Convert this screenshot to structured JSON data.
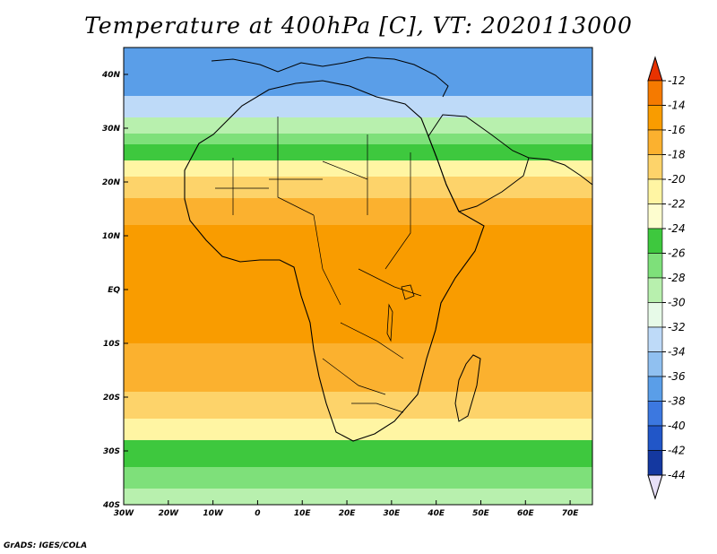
{
  "title": "Temperature at 400hPa [C], VT: 2020113000",
  "credit": "GrADS: IGES/COLA",
  "map": {
    "projection": "lat-lon",
    "lon_range": [
      -30,
      75
    ],
    "lat_range": [
      -40,
      45
    ],
    "lon_ticks": [
      {
        "value": -30,
        "label": "30W"
      },
      {
        "value": -20,
        "label": "20W"
      },
      {
        "value": -10,
        "label": "10W"
      },
      {
        "value": 0,
        "label": "0"
      },
      {
        "value": 10,
        "label": "10E"
      },
      {
        "value": 20,
        "label": "20E"
      },
      {
        "value": 30,
        "label": "30E"
      },
      {
        "value": 40,
        "label": "40E"
      },
      {
        "value": 50,
        "label": "50E"
      },
      {
        "value": 60,
        "label": "60E"
      },
      {
        "value": 70,
        "label": "70E"
      }
    ],
    "lat_ticks": [
      {
        "value": 40,
        "label": "40N"
      },
      {
        "value": 30,
        "label": "30N"
      },
      {
        "value": 20,
        "label": "20N"
      },
      {
        "value": 10,
        "label": "10N"
      },
      {
        "value": 0,
        "label": "EQ"
      },
      {
        "value": -10,
        "label": "10S"
      },
      {
        "value": -20,
        "label": "20S"
      },
      {
        "value": -30,
        "label": "30S"
      },
      {
        "value": -40,
        "label": "40S"
      }
    ],
    "temperature_bands_by_lat": [
      {
        "lat_top": 45,
        "lat_bottom": 36,
        "value": -37
      },
      {
        "lat_top": 36,
        "lat_bottom": 32,
        "value": -33
      },
      {
        "lat_top": 32,
        "lat_bottom": 29,
        "value": -29
      },
      {
        "lat_top": 29,
        "lat_bottom": 27,
        "value": -27
      },
      {
        "lat_top": 27,
        "lat_bottom": 24,
        "value": -25
      },
      {
        "lat_top": 24,
        "lat_bottom": 21,
        "value": -21
      },
      {
        "lat_top": 21,
        "lat_bottom": 17,
        "value": -19
      },
      {
        "lat_top": 17,
        "lat_bottom": 12,
        "value": -17
      },
      {
        "lat_top": 12,
        "lat_bottom": -10,
        "value": -15
      },
      {
        "lat_top": -10,
        "lat_bottom": -19,
        "value": -17
      },
      {
        "lat_top": -19,
        "lat_bottom": -24,
        "value": -19
      },
      {
        "lat_top": -24,
        "lat_bottom": -28,
        "value": -21
      },
      {
        "lat_top": -28,
        "lat_bottom": -33,
        "value": -25
      },
      {
        "lat_top": -33,
        "lat_bottom": -37,
        "value": -27
      },
      {
        "lat_top": -37,
        "lat_bottom": -40,
        "value": -29
      }
    ]
  },
  "colorbar": {
    "levels": [
      "-12",
      "-14",
      "-16",
      "-18",
      "-20",
      "-22",
      "-24",
      "-26",
      "-28",
      "-30",
      "-32",
      "-34",
      "-36",
      "-38",
      "-40",
      "-42",
      "-44"
    ],
    "colors": [
      "#f03c00",
      "#f57a00",
      "#f99c00",
      "#fbb12f",
      "#fdd36a",
      "#fff5a3",
      "#fdfdcf",
      "#3ec83e",
      "#7ee07a",
      "#b8f0ae",
      "#e7fae8",
      "#bedaf8",
      "#90c0f0",
      "#5a9ee8",
      "#3c78e0",
      "#2156c8",
      "#1438a0",
      "#0a1470",
      "#eae2ff"
    ],
    "top_color": "#e83200",
    "bottom_color": "#e8e0f8"
  }
}
